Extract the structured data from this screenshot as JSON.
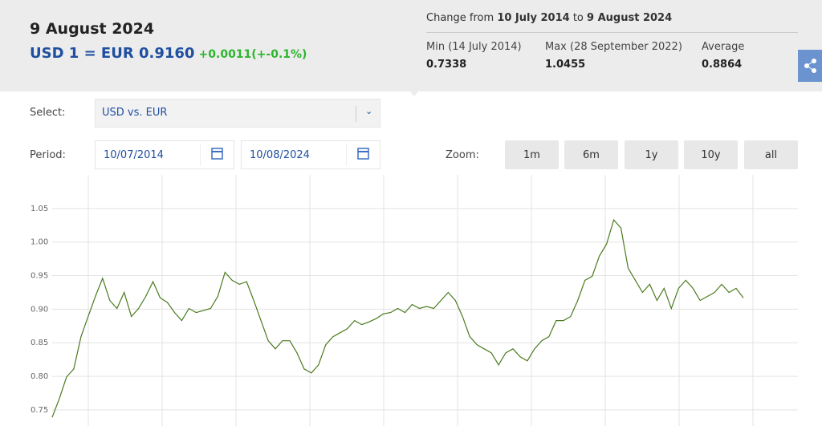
{
  "header": {
    "date": "9 August 2024",
    "rate": "USD 1 = EUR 0.9160",
    "change": "+0.0011(+-0.1%)"
  },
  "summary": {
    "prefix": "Change from",
    "start": "10 July 2014",
    "joiner": "to",
    "end": "9 August 2024",
    "stats": [
      {
        "label": "Min (14 July 2014)",
        "value": "0.7338"
      },
      {
        "label": "Max (28 September 2022)",
        "value": "1.0455"
      },
      {
        "label": "Average",
        "value": "0.8864"
      }
    ]
  },
  "controls": {
    "select_label": "Select:",
    "select_value": "USD vs. EUR",
    "period_label": "Period:",
    "period_start": "10/07/2014",
    "period_end": "10/08/2024",
    "zoom_label": "Zoom:",
    "zoom_buttons": [
      "1m",
      "6m",
      "1y",
      "10y",
      "all"
    ]
  },
  "chart_data": {
    "type": "line",
    "color": "#4a7a1e",
    "ylim": [
      0.726,
      1.1
    ],
    "yticks": [
      0.75,
      {
        "value": 0.8,
        "label": "0.80"
      },
      0.85,
      {
        "value": 0.9,
        "label": "0.90"
      },
      0.95,
      {
        "value": 1.0,
        "label": "1.00"
      },
      1.05
    ],
    "grid": true,
    "values": [
      0.739,
      0.767,
      0.799,
      0.811,
      0.859,
      0.889,
      0.919,
      0.946,
      0.913,
      0.901,
      0.925,
      0.889,
      0.901,
      0.919,
      0.941,
      0.917,
      0.91,
      0.895,
      0.883,
      0.901,
      0.895,
      0.898,
      0.901,
      0.919,
      0.955,
      0.943,
      0.937,
      0.941,
      0.913,
      0.883,
      0.853,
      0.841,
      0.853,
      0.853,
      0.835,
      0.811,
      0.805,
      0.817,
      0.847,
      0.859,
      0.865,
      0.871,
      0.883,
      0.877,
      0.881,
      0.886,
      0.893,
      0.895,
      0.901,
      0.895,
      0.907,
      0.901,
      0.904,
      0.901,
      0.913,
      0.925,
      0.913,
      0.889,
      0.859,
      0.847,
      0.841,
      0.835,
      0.817,
      0.835,
      0.841,
      0.829,
      0.823,
      0.841,
      0.853,
      0.859,
      0.883,
      0.883,
      0.889,
      0.913,
      0.943,
      0.949,
      0.979,
      0.997,
      1.033,
      1.021,
      0.961,
      0.943,
      0.925,
      0.937,
      0.913,
      0.931,
      0.901,
      0.931,
      0.943,
      0.931,
      0.913,
      0.919,
      0.925,
      0.937,
      0.925,
      0.931,
      0.917
    ]
  }
}
